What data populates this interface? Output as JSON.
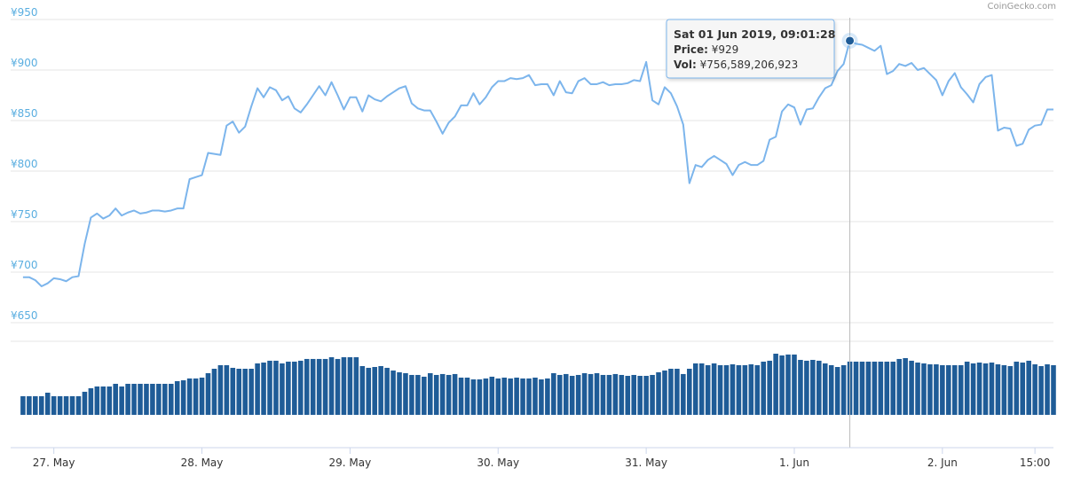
{
  "chart_data": {
    "type": "line",
    "source": "CoinGecko.com",
    "xlim": [
      "2019-05-26 17:00",
      "2019-06-02 18:00"
    ],
    "xticks": [
      {
        "value": "2019-05-27 00:00",
        "label": "27. May"
      },
      {
        "value": "2019-05-28 00:00",
        "label": "28. May"
      },
      {
        "value": "2019-05-29 00:00",
        "label": "29. May"
      },
      {
        "value": "2019-05-30 00:00",
        "label": "30. May"
      },
      {
        "value": "2019-05-31 00:00",
        "label": "31. May"
      },
      {
        "value": "2019-06-01 00:00",
        "label": "1. Jun"
      },
      {
        "value": "2019-06-02 00:00",
        "label": "2. Jun"
      },
      {
        "value": "2019-06-02 15:00",
        "label": "15:00"
      }
    ],
    "ylim": [
      650,
      950
    ],
    "yticks": [
      {
        "value": 650,
        "label": "¥650"
      },
      {
        "value": 700,
        "label": "¥700"
      },
      {
        "value": 750,
        "label": "¥750"
      },
      {
        "value": 800,
        "label": "¥800"
      },
      {
        "value": 850,
        "label": "¥850"
      },
      {
        "value": 900,
        "label": "¥900"
      },
      {
        "value": 950,
        "label": "¥950"
      }
    ],
    "grid": true,
    "x": [
      "2019-05-26 19:00",
      "2019-05-26 20:00",
      "2019-05-26 21:00",
      "2019-05-26 22:00",
      "2019-05-26 23:00",
      "2019-05-27 00:00",
      "2019-05-27 01:00",
      "2019-05-27 02:00",
      "2019-05-27 03:00",
      "2019-05-27 04:00",
      "2019-05-27 05:00",
      "2019-05-27 06:00",
      "2019-05-27 07:00",
      "2019-05-27 08:00",
      "2019-05-27 09:00",
      "2019-05-27 10:00",
      "2019-05-27 11:00",
      "2019-05-27 12:00",
      "2019-05-27 13:00",
      "2019-05-27 14:00",
      "2019-05-27 15:00",
      "2019-05-27 16:00",
      "2019-05-27 17:00",
      "2019-05-27 18:00",
      "2019-05-27 19:00",
      "2019-05-27 20:00",
      "2019-05-27 21:00",
      "2019-05-27 22:00",
      "2019-05-27 23:00",
      "2019-05-28 00:00",
      "2019-05-28 01:00",
      "2019-05-28 02:00",
      "2019-05-28 03:00",
      "2019-05-28 04:00",
      "2019-05-28 05:00",
      "2019-05-28 06:00",
      "2019-05-28 07:00",
      "2019-05-28 08:00",
      "2019-05-28 09:00",
      "2019-05-28 10:00",
      "2019-05-28 11:00",
      "2019-05-28 12:00",
      "2019-05-28 13:00",
      "2019-05-28 14:00",
      "2019-05-28 15:00",
      "2019-05-28 16:00",
      "2019-05-28 17:00",
      "2019-05-28 18:00",
      "2019-05-28 19:00",
      "2019-05-28 20:00",
      "2019-05-28 21:00",
      "2019-05-28 22:00",
      "2019-05-28 23:00",
      "2019-05-29 00:00",
      "2019-05-29 01:00",
      "2019-05-29 02:00",
      "2019-05-29 03:00",
      "2019-05-29 04:00",
      "2019-05-29 05:00",
      "2019-05-29 06:00",
      "2019-05-29 07:00",
      "2019-05-29 08:00",
      "2019-05-29 09:00",
      "2019-05-29 10:00",
      "2019-05-29 11:00",
      "2019-05-29 12:00",
      "2019-05-29 13:00",
      "2019-05-29 14:00",
      "2019-05-29 15:00",
      "2019-05-29 16:00",
      "2019-05-29 17:00",
      "2019-05-29 18:00",
      "2019-05-29 19:00",
      "2019-05-29 20:00",
      "2019-05-29 21:00",
      "2019-05-29 22:00",
      "2019-05-29 23:00",
      "2019-05-30 00:00",
      "2019-05-30 01:00",
      "2019-05-30 02:00",
      "2019-05-30 03:00",
      "2019-05-30 04:00",
      "2019-05-30 05:00",
      "2019-05-30 06:00",
      "2019-05-30 07:00",
      "2019-05-30 08:00",
      "2019-05-30 09:00",
      "2019-05-30 10:00",
      "2019-05-30 11:00",
      "2019-05-30 12:00",
      "2019-05-30 13:00",
      "2019-05-30 14:00",
      "2019-05-30 15:00",
      "2019-05-30 16:00",
      "2019-05-30 17:00",
      "2019-05-30 18:00",
      "2019-05-30 19:00",
      "2019-05-30 20:00",
      "2019-05-30 21:00",
      "2019-05-30 22:00",
      "2019-05-30 23:00",
      "2019-05-31 00:00",
      "2019-05-31 01:00",
      "2019-05-31 02:00",
      "2019-05-31 03:00",
      "2019-05-31 04:00",
      "2019-05-31 05:00",
      "2019-05-31 06:00",
      "2019-05-31 07:00",
      "2019-05-31 08:00",
      "2019-05-31 09:00",
      "2019-05-31 10:00",
      "2019-05-31 11:00",
      "2019-05-31 12:00",
      "2019-05-31 13:00",
      "2019-05-31 14:00",
      "2019-05-31 15:00",
      "2019-05-31 16:00",
      "2019-05-31 17:00",
      "2019-05-31 18:00",
      "2019-05-31 19:00",
      "2019-05-31 20:00",
      "2019-05-31 21:00",
      "2019-05-31 22:00",
      "2019-05-31 23:00",
      "2019-06-01 00:00",
      "2019-06-01 01:00",
      "2019-06-01 02:00",
      "2019-06-01 03:00",
      "2019-06-01 04:00",
      "2019-06-01 05:00",
      "2019-06-01 06:00",
      "2019-06-01 07:00",
      "2019-06-01 08:00",
      "2019-06-01 09:00",
      "2019-06-01 10:00",
      "2019-06-01 11:00",
      "2019-06-01 12:00",
      "2019-06-01 13:00",
      "2019-06-01 14:00",
      "2019-06-01 15:00",
      "2019-06-01 16:00",
      "2019-06-01 17:00",
      "2019-06-01 18:00",
      "2019-06-01 19:00",
      "2019-06-01 20:00",
      "2019-06-01 21:00",
      "2019-06-01 22:00",
      "2019-06-01 23:00",
      "2019-06-02 00:00",
      "2019-06-02 01:00",
      "2019-06-02 02:00",
      "2019-06-02 03:00",
      "2019-06-02 04:00",
      "2019-06-02 05:00",
      "2019-06-02 06:00",
      "2019-06-02 07:00",
      "2019-06-02 08:00",
      "2019-06-02 09:00",
      "2019-06-02 10:00",
      "2019-06-02 11:00",
      "2019-06-02 12:00",
      "2019-06-02 13:00",
      "2019-06-02 14:00",
      "2019-06-02 15:00",
      "2019-06-02 16:00",
      "2019-06-02 17:00",
      "2019-06-02 18:00"
    ],
    "series": [
      {
        "type": "line",
        "color": "#7cb5ec",
        "values": [
          695,
          695,
          692,
          686,
          689,
          694,
          693,
          691,
          695,
          696,
          728,
          754,
          758,
          753,
          756,
          763,
          756,
          759,
          761,
          758,
          759,
          761,
          761,
          760,
          761,
          763,
          763,
          792,
          794,
          796,
          818,
          817,
          816,
          845,
          849,
          838,
          844,
          864,
          882,
          873,
          883,
          880,
          870,
          874,
          862,
          858,
          866,
          875,
          884,
          875,
          888,
          875,
          861,
          873,
          873,
          859,
          875,
          871,
          869,
          874,
          878,
          882,
          884,
          867,
          862,
          860,
          860,
          849,
          837,
          848,
          854,
          865,
          865,
          877,
          866,
          873,
          883,
          889,
          889,
          892,
          891,
          892,
          895,
          885,
          886,
          886,
          875,
          889,
          878,
          877,
          889,
          892,
          886,
          886,
          888,
          885,
          886,
          886,
          887,
          890,
          889,
          908,
          870,
          866,
          883,
          877,
          864,
          846,
          788,
          806,
          804,
          811,
          815,
          811,
          807,
          796,
          806,
          809,
          806,
          806,
          810,
          831,
          834,
          859,
          866,
          863,
          846,
          861,
          862,
          873,
          882,
          885,
          899,
          906,
          929,
          926,
          925,
          922,
          919,
          924,
          896,
          899,
          906,
          904,
          907,
          900,
          902,
          896,
          890,
          875,
          889,
          897,
          883,
          876,
          868,
          886,
          893,
          895,
          840,
          843,
          842,
          825,
          827,
          841,
          845,
          846,
          861,
          861
        ]
      },
      {
        "type": "bar",
        "color": "#1f5c97",
        "values": [
          265000000000.0,
          265000000000.0,
          265000000000.0,
          265000000000.0,
          315000000000.0,
          265000000000.0,
          265000000000.0,
          265000000000.0,
          265000000000.0,
          265000000000.0,
          328000000000.0,
          378000000000.0,
          403000000000.0,
          403000000000.0,
          403000000000.0,
          441000000000.0,
          403000000000.0,
          441000000000.0,
          441000000000.0,
          441000000000.0,
          441000000000.0,
          441000000000.0,
          441000000000.0,
          441000000000.0,
          441000000000.0,
          479000000000.0,
          491000000000.0,
          517000000000.0,
          517000000000.0,
          529000000000.0,
          592000000000.0,
          655000000000.0,
          706000000000.0,
          706000000000.0,
          668000000000.0,
          655000000000.0,
          655000000000.0,
          655000000000.0,
          731000000000.0,
          743000000000.0,
          769000000000.0,
          769000000000.0,
          731000000000.0,
          756000000000.0,
          756000000000.0,
          769000000000.0,
          794000000000.0,
          794000000000.0,
          794000000000.0,
          794000000000.0,
          819000000000.0,
          794000000000.0,
          819000000000.0,
          819000000000.0,
          819000000000.0,
          693000000000.0,
          668000000000.0,
          680000000000.0,
          693000000000.0,
          668000000000.0,
          630000000000.0,
          605000000000.0,
          592000000000.0,
          567000000000.0,
          567000000000.0,
          542000000000.0,
          592000000000.0,
          567000000000.0,
          580000000000.0,
          567000000000.0,
          580000000000.0,
          529000000000.0,
          529000000000.0,
          504000000000.0,
          504000000000.0,
          517000000000.0,
          542000000000.0,
          517000000000.0,
          529000000000.0,
          517000000000.0,
          529000000000.0,
          517000000000.0,
          517000000000.0,
          529000000000.0,
          504000000000.0,
          517000000000.0,
          592000000000.0,
          567000000000.0,
          580000000000.0,
          554000000000.0,
          567000000000.0,
          592000000000.0,
          580000000000.0,
          592000000000.0,
          567000000000.0,
          567000000000.0,
          580000000000.0,
          567000000000.0,
          554000000000.0,
          567000000000.0,
          554000000000.0,
          554000000000.0,
          567000000000.0,
          605000000000.0,
          630000000000.0,
          655000000000.0,
          655000000000.0,
          580000000000.0,
          655000000000.0,
          731000000000.0,
          731000000000.0,
          706000000000.0,
          731000000000.0,
          706000000000.0,
          706000000000.0,
          718000000000.0,
          706000000000.0,
          706000000000.0,
          718000000000.0,
          706000000000.0,
          756000000000.0,
          769000000000.0,
          869000000000.0,
          844000000000.0,
          857000000000.0,
          857000000000.0,
          781000000000.0,
          769000000000.0,
          781000000000.0,
          769000000000.0,
          731000000000.0,
          706000000000.0,
          680000000000.0,
          706000000000.0,
          756589206923,
          756000000000.0,
          756000000000.0,
          756000000000.0,
          756000000000.0,
          756000000000.0,
          756000000000.0,
          756000000000.0,
          794000000000.0,
          806000000000.0,
          769000000000.0,
          743000000000.0,
          731000000000.0,
          718000000000.0,
          718000000000.0,
          706000000000.0,
          706000000000.0,
          706000000000.0,
          706000000000.0,
          756000000000.0,
          731000000000.0,
          743000000000.0,
          731000000000.0,
          743000000000.0,
          718000000000.0,
          706000000000.0,
          693000000000.0,
          756000000000.0,
          743000000000.0,
          769000000000.0,
          718000000000.0,
          693000000000.0,
          718000000000.0,
          706000000000.0
        ]
      }
    ],
    "tooltip": {
      "title": "Sat 01 Jun 2019, 09:01:28",
      "rows": [
        {
          "label": "Price:",
          "value": "¥929"
        },
        {
          "label": "Vol:",
          "value": "¥756,589,206,923"
        }
      ]
    }
  }
}
